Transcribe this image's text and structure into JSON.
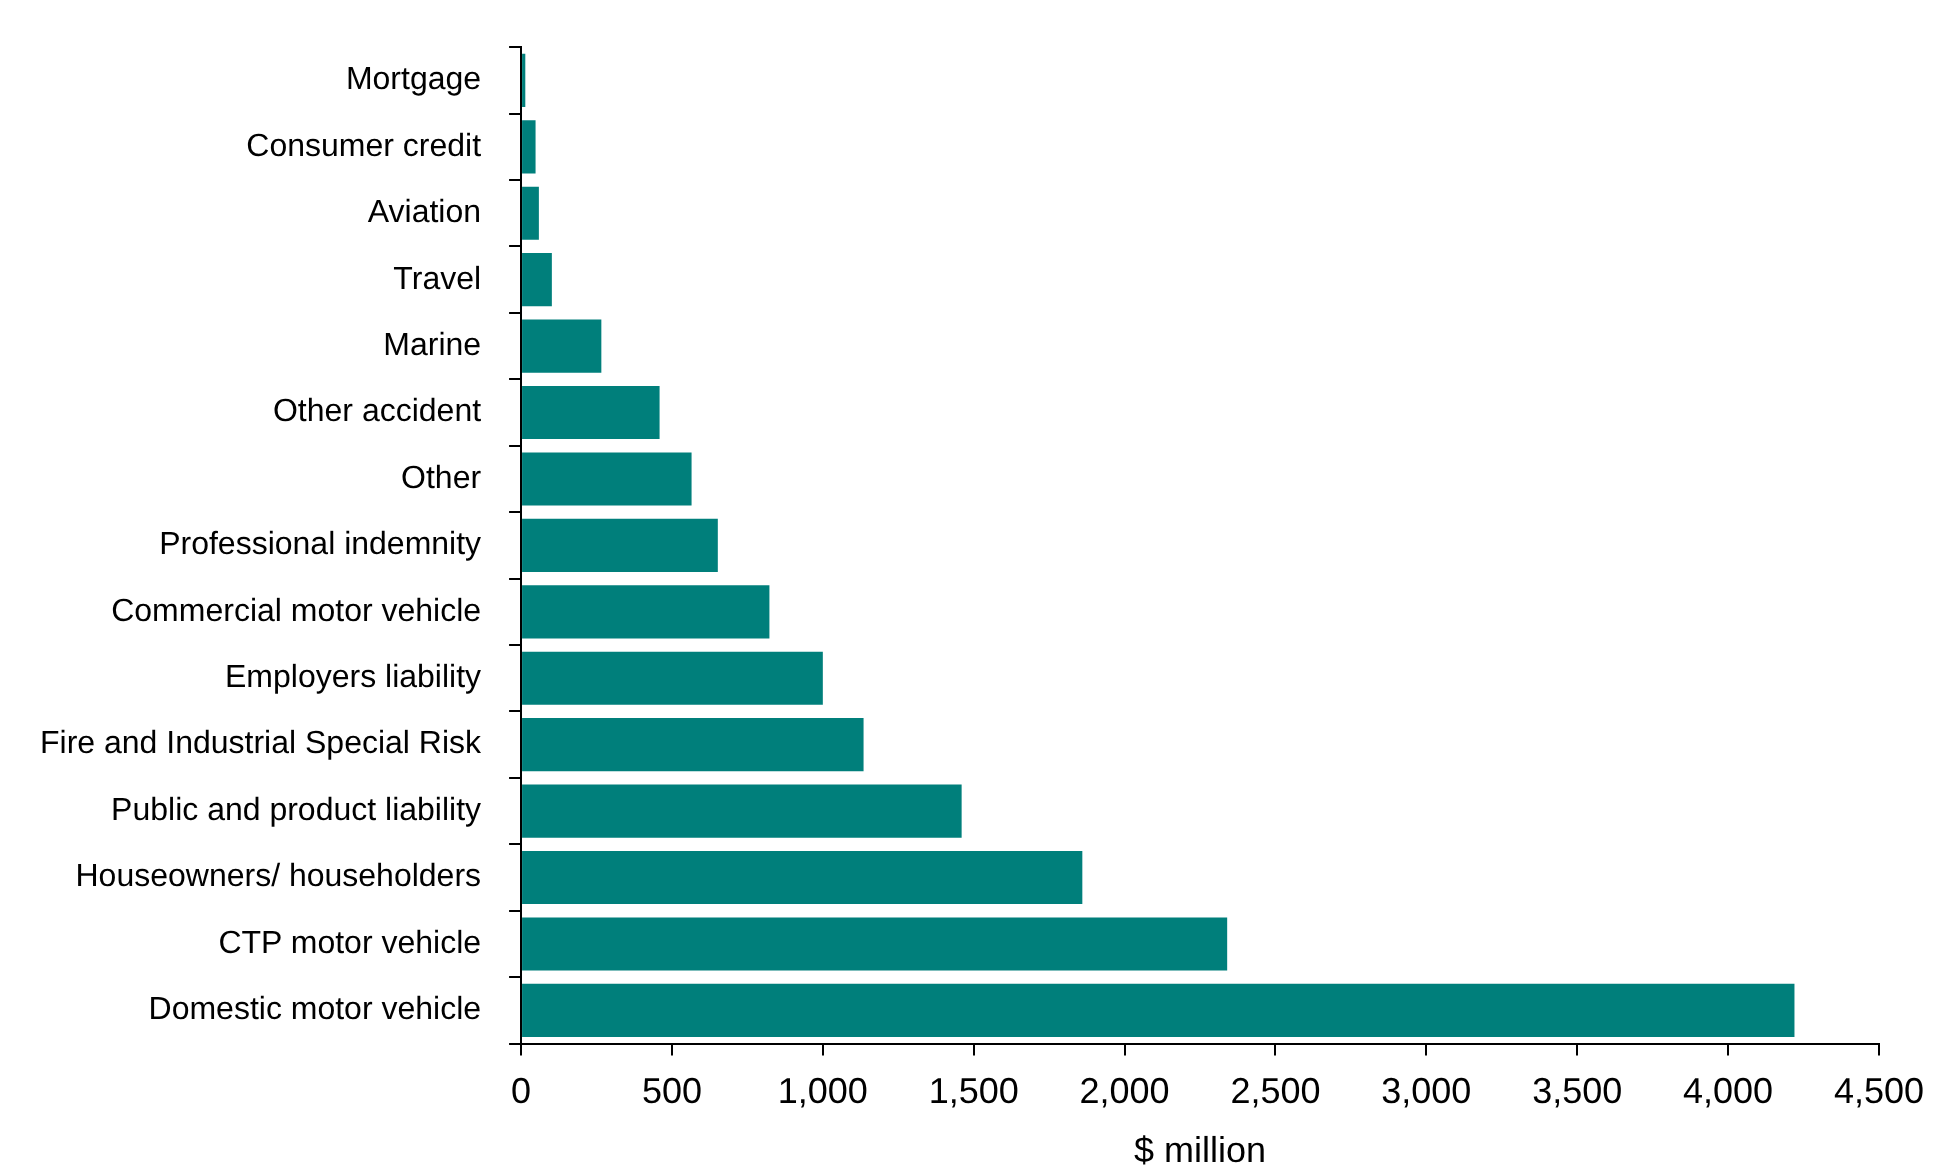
{
  "chart_data": {
    "type": "bar",
    "orientation": "horizontal",
    "xlabel": "$ million",
    "categories": [
      "Mortgage",
      "Consumer credit",
      "Aviation",
      "Travel",
      "Marine",
      "Other accident",
      "Other",
      "Professional indemnity",
      "Commercial motor vehicle",
      "Employers liability",
      "Fire and Industrial Special Risk",
      "Public and product liability",
      "Houseowners/ householders",
      "CTP motor vehicle",
      "Domestic motor vehicle"
    ],
    "values": [
      14,
      48,
      59,
      102,
      266,
      459,
      565,
      652,
      823,
      1000,
      1135,
      1460,
      1860,
      2340,
      4220
    ],
    "color": "#007f7b",
    "xlim": [
      0,
      4500
    ],
    "xticks": [
      0,
      500,
      {
        "value": 1000,
        "label": "1,000"
      },
      {
        "value": 1500,
        "label": "1,500"
      },
      {
        "value": 2000,
        "label": "2,000"
      },
      {
        "value": 2500,
        "label": "2,500"
      },
      {
        "value": 3000,
        "label": "3,000"
      },
      {
        "value": 3500,
        "label": "3,500"
      },
      {
        "value": 4000,
        "label": "4,000"
      },
      {
        "value": 4500,
        "label": "4,500"
      }
    ],
    "grid": false,
    "legend": false
  }
}
